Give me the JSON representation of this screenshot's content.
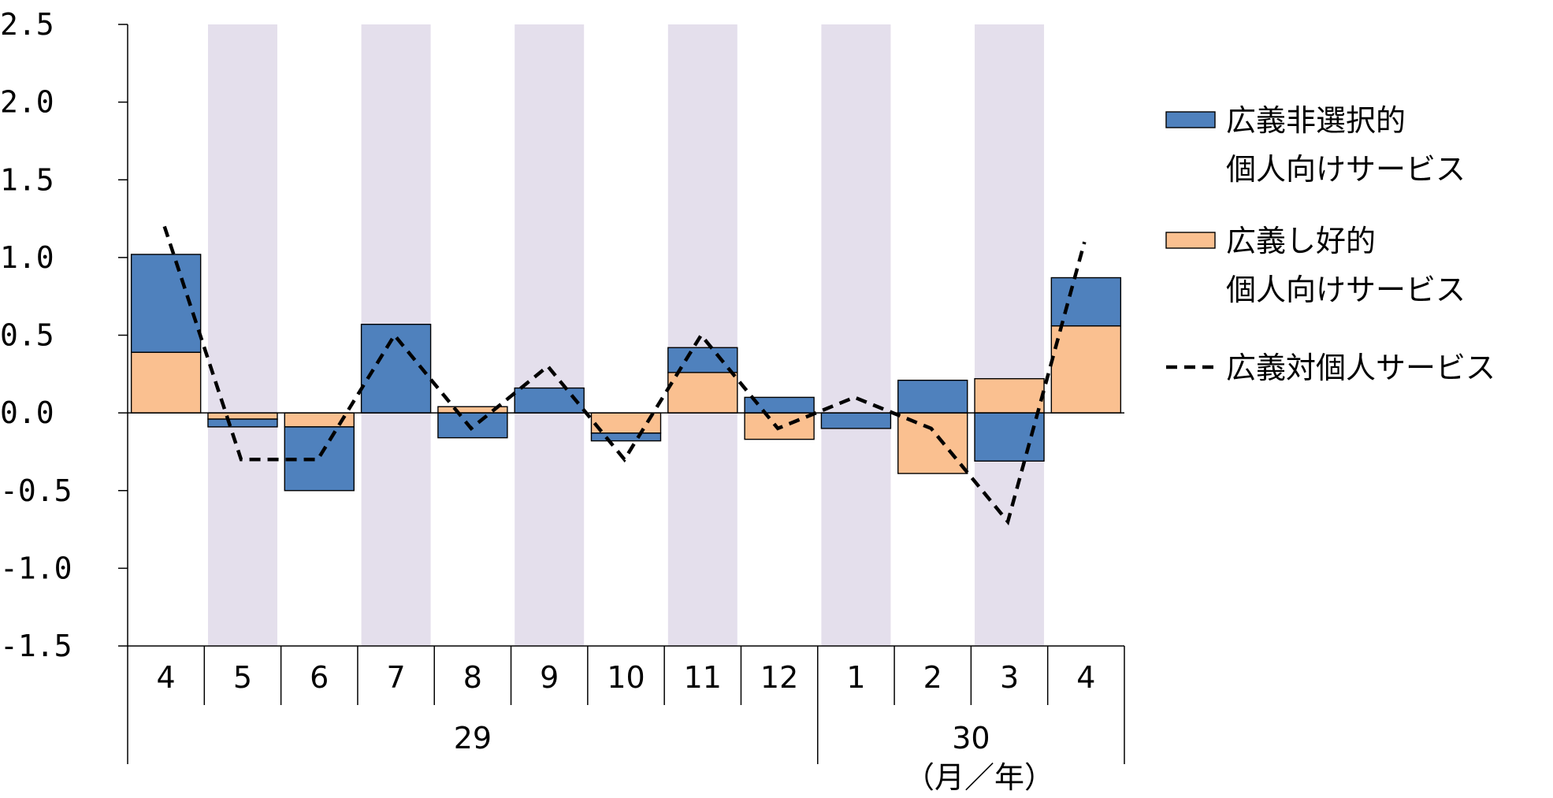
{
  "chart_data": {
    "type": "bar",
    "stacked": true,
    "categories": [
      "4",
      "5",
      "6",
      "7",
      "8",
      "9",
      "10",
      "11",
      "12",
      "1",
      "2",
      "3",
      "4"
    ],
    "year_groups": [
      {
        "label": "29",
        "from_index": 0,
        "to_index": 8
      },
      {
        "label": "30",
        "from_index": 9,
        "to_index": 12
      }
    ],
    "unit_label": "（月／年）",
    "ylim": [
      -1.5,
      2.5
    ],
    "yticks": [
      2.5,
      2.0,
      1.5,
      1.0,
      0.5,
      0.0,
      -0.5,
      -1.0,
      -1.5
    ],
    "ytick_labels": [
      "2.5",
      "2.0",
      "1.5",
      "1.0",
      "0.5",
      "0.0",
      "-0.5",
      "-1.0",
      "-1.5"
    ],
    "shaded_category_indices": [
      1,
      3,
      5,
      7,
      9,
      11
    ],
    "shade_color": "#e4dfec",
    "series": [
      {
        "name_lines": [
          "広義し好的",
          "個人向けサービス"
        ],
        "kind": "bar",
        "color": "#fac090",
        "values": [
          0.39,
          -0.04,
          -0.09,
          0.0,
          0.04,
          0.0,
          -0.13,
          0.26,
          -0.17,
          0.0,
          -0.39,
          0.22,
          0.56
        ]
      },
      {
        "name_lines": [
          "広義非選択的",
          "個人向けサービス"
        ],
        "kind": "bar",
        "color": "#4f81bd",
        "values": [
          0.63,
          -0.05,
          -0.41,
          0.57,
          -0.16,
          0.16,
          -0.05,
          0.16,
          0.1,
          -0.1,
          0.21,
          -0.31,
          0.31
        ]
      },
      {
        "name_lines": [
          "広義対個人サービス"
        ],
        "kind": "line",
        "dashed": true,
        "color": "#000000",
        "values": [
          1.2,
          -0.3,
          -0.3,
          0.5,
          -0.1,
          0.3,
          -0.3,
          0.5,
          -0.1,
          0.1,
          -0.1,
          -0.7,
          1.1
        ]
      }
    ],
    "legend_order": [
      1,
      0,
      2
    ],
    "legend_position": "right",
    "grid": false
  }
}
